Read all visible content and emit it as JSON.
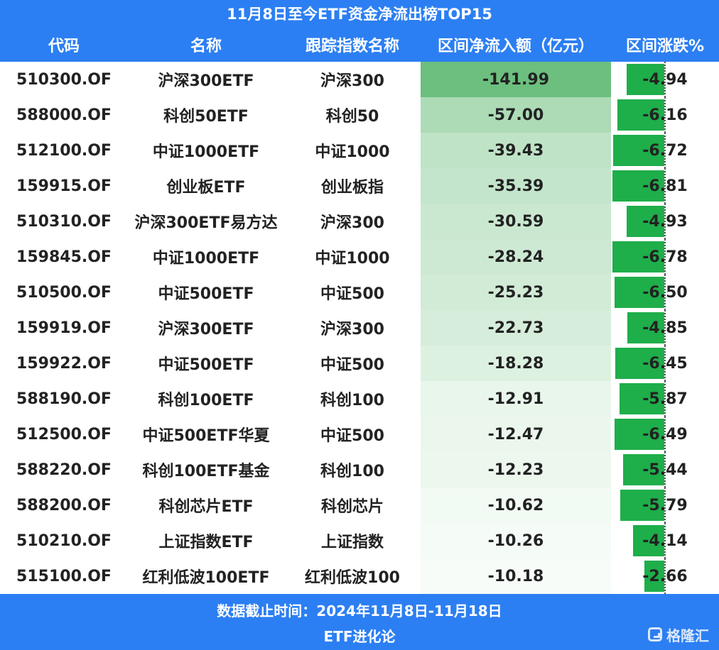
{
  "title": "11月8日至今ETF资金净流出榜TOP15",
  "headers": {
    "code": "代码",
    "name": "名称",
    "index": "跟踪指数名称",
    "flow": "区间净流入额（亿元）",
    "change": "区间涨跌%"
  },
  "colors": {
    "header_bg": "#2c7ff2",
    "change_bar": "#1eae4a",
    "flow_max": "#6cbf7e"
  },
  "chart_data": {
    "type": "table",
    "columns": [
      "代码",
      "名称",
      "跟踪指数名称",
      "区间净流入额（亿元）",
      "区间涨跌%"
    ],
    "rows": [
      {
        "code": "510300.OF",
        "name": "沪深300ETF",
        "index": "沪深300",
        "flow": "-141.99",
        "change": "-4.94"
      },
      {
        "code": "588000.OF",
        "name": "科创50ETF",
        "index": "科创50",
        "flow": "-57.00",
        "change": "-6.16"
      },
      {
        "code": "512100.OF",
        "name": "中证1000ETF",
        "index": "中证1000",
        "flow": "-39.43",
        "change": "-6.72"
      },
      {
        "code": "159915.OF",
        "name": "创业板ETF",
        "index": "创业板指",
        "flow": "-35.39",
        "change": "-6.81"
      },
      {
        "code": "510310.OF",
        "name": "沪深300ETF易方达",
        "index": "沪深300",
        "flow": "-30.59",
        "change": "-4.93"
      },
      {
        "code": "159845.OF",
        "name": "中证1000ETF",
        "index": "中证1000",
        "flow": "-28.24",
        "change": "-6.78"
      },
      {
        "code": "510500.OF",
        "name": "中证500ETF",
        "index": "中证500",
        "flow": "-25.23",
        "change": "-6.50"
      },
      {
        "code": "159919.OF",
        "name": "沪深300ETF",
        "index": "沪深300",
        "flow": "-22.73",
        "change": "-4.85"
      },
      {
        "code": "159922.OF",
        "name": "中证500ETF",
        "index": "中证500",
        "flow": "-18.28",
        "change": "-6.45"
      },
      {
        "code": "588190.OF",
        "name": "科创100ETF",
        "index": "科创100",
        "flow": "-12.91",
        "change": "-5.87"
      },
      {
        "code": "512500.OF",
        "name": "中证500ETF华夏",
        "index": "中证500",
        "flow": "-12.47",
        "change": "-6.49"
      },
      {
        "code": "588220.OF",
        "name": "科创100ETF基金",
        "index": "科创100",
        "flow": "-12.23",
        "change": "-5.44"
      },
      {
        "code": "588200.OF",
        "name": "科创芯片ETF",
        "index": "科创芯片",
        "flow": "-10.62",
        "change": "-5.79"
      },
      {
        "code": "510210.OF",
        "name": "上证指数ETF",
        "index": "上证指数",
        "flow": "-10.26",
        "change": "-4.14"
      },
      {
        "code": "515100.OF",
        "name": "红利低波100ETF",
        "index": "红利低波100",
        "flow": "-10.18",
        "change": "-2.66"
      }
    ]
  },
  "footer": {
    "date_range": "数据截止时间：2024年11月8日-11月18日",
    "source": "ETF进化论"
  },
  "watermark": {
    "text": "格隆汇",
    "icon": "gelonghui-logo-icon"
  }
}
